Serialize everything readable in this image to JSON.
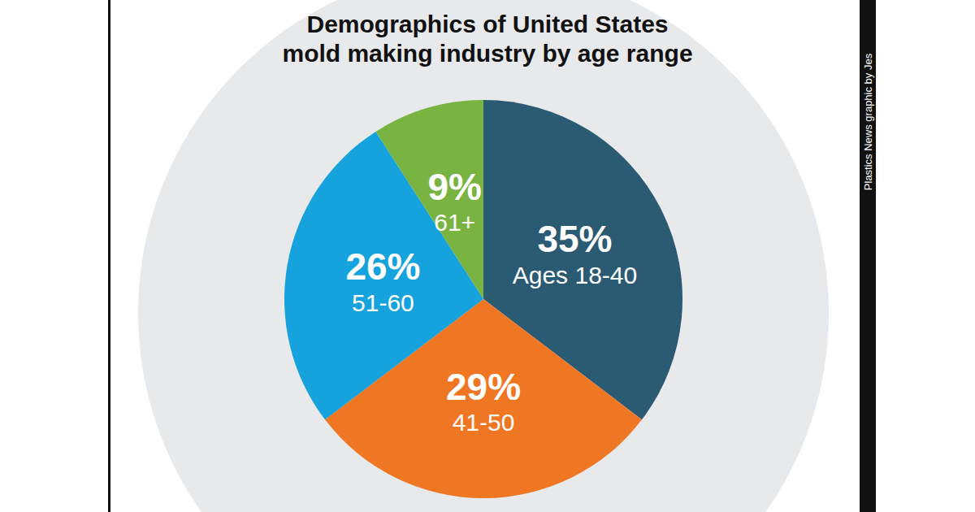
{
  "chart_data": {
    "type": "pie",
    "title": "Demographics of United States mold making industry by age range",
    "categories": [
      "Ages 18-40",
      "41-50",
      "51-60",
      "61+"
    ],
    "values": [
      35,
      29,
      26,
      9
    ],
    "value_labels": [
      "35%",
      "29%",
      "26%",
      "9%"
    ],
    "colors": [
      "#2b5b73",
      "#ef7622",
      "#16a2dc",
      "#79b443"
    ],
    "data_labels": true,
    "annotations": [
      "Plastics News graphic by Jes"
    ]
  }
}
